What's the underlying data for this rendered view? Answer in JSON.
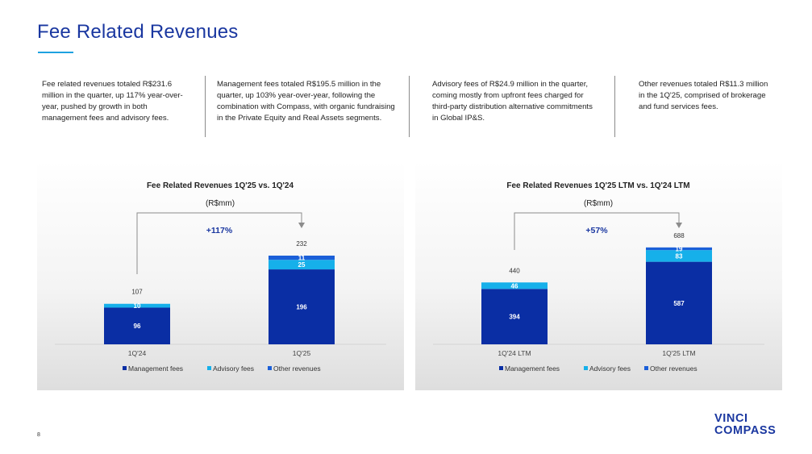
{
  "page": {
    "title": "Fee Related Revenues",
    "page_number": "8",
    "logo_line1": "VINCI",
    "logo_line2": "COMPASS"
  },
  "texts": [
    "Fee related revenues totaled R$231.6 million in the quarter, up 117% year-over-year, pushed by growth in both management fees and advisory fees.",
    "Management fees totaled R$195.5 million in the quarter, up 103% year-over-year, following the combination with Compass, with organic fundraising in the Private Equity and Real Assets segments.",
    "Advisory fees of R$24.9 million in the quarter, coming mostly from upfront fees charged for third-party distribution alternative commitments in Global IP&S.",
    "Other revenues totaled R$11.3 million in the 1Q'25, comprised of brokerage and fund services fees."
  ],
  "colors": {
    "management": "#0a2ea4",
    "advisory": "#16b0ea",
    "other": "#1b5fd8",
    "accent": "#1a37a0"
  },
  "chart_data": [
    {
      "type": "bar",
      "stacked": true,
      "title": "Fee Related Revenues 1Q'25 vs. 1Q'24",
      "subtitle": "(R$mm)",
      "growth_label": "+117%",
      "categories": [
        "1Q'24",
        "1Q'25"
      ],
      "series": [
        {
          "name": "Management fees",
          "values": [
            96,
            196
          ]
        },
        {
          "name": "Advisory fees",
          "values": [
            10,
            25
          ]
        },
        {
          "name": "Other revenues",
          "values": [
            0,
            11
          ]
        }
      ],
      "totals": [
        107,
        232
      ],
      "segment_labels": [
        [
          "96",
          "10",
          ""
        ],
        [
          "196",
          "25",
          "11"
        ]
      ],
      "legend_position": "bottom"
    },
    {
      "type": "bar",
      "stacked": true,
      "title": "Fee Related Revenues 1Q'25 LTM vs. 1Q'24 LTM",
      "subtitle": "(R$mm)",
      "growth_label": "+57%",
      "categories": [
        "1Q'24 LTM",
        "1Q'25 LTM"
      ],
      "series": [
        {
          "name": "Management fees",
          "values": [
            394,
            587
          ]
        },
        {
          "name": "Advisory fees",
          "values": [
            46,
            83
          ]
        },
        {
          "name": "Other revenues",
          "values": [
            0,
            19
          ]
        }
      ],
      "totals": [
        440,
        688
      ],
      "segment_labels": [
        [
          "394",
          "46",
          ""
        ],
        [
          "587",
          "83",
          "19"
        ]
      ],
      "legend_position": "bottom"
    }
  ]
}
